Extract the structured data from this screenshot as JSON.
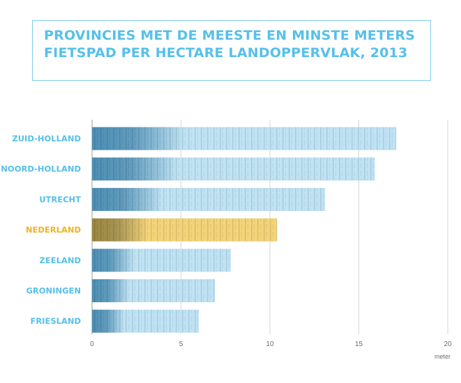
{
  "title": "PROVINCIES MET DE MEESTE EN MINSTE METERS FIETSPAD PER HECTARE LANDOPPERVLAK, 2013",
  "colors": {
    "title": "#56c0ea",
    "label": "#56c0ea",
    "highlight_label": "#f0b323",
    "bar_light": "#bfe3f4",
    "bar_dark": "#4d8fb5",
    "highlight_light": "#f3d479",
    "highlight_dark": "#9c8740",
    "frame": "#7ecbea",
    "grid": "#d6d6d6",
    "axis": "#9a9a9a"
  },
  "chart_data": {
    "type": "bar",
    "orientation": "horizontal",
    "title": "PROVINCIES MET DE MEESTE EN MINSTE METERS FIETSPAD PER HECTARE LANDOPPERVLAK, 2013",
    "categories": [
      "ZUID-HOLLAND",
      "NOORD-HOLLAND",
      "UTRECHT",
      "NEDERLAND",
      "ZEELAND",
      "GRONINGEN",
      "FRIESLAND"
    ],
    "values": [
      17.1,
      15.9,
      13.1,
      10.4,
      7.8,
      6.9,
      6.0
    ],
    "highlight": "NEDERLAND",
    "xlim": [
      0,
      20
    ],
    "x_ticks": [
      0,
      5,
      10,
      15,
      20
    ],
    "x_tick_labels": [
      "0",
      "5",
      "10",
      "15",
      "20"
    ],
    "xlabel": "meter",
    "ylabel": "",
    "grid": true
  }
}
